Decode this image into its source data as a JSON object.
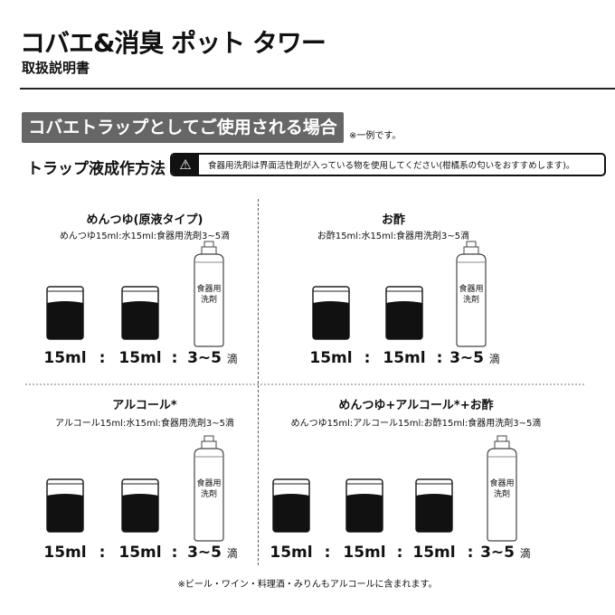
{
  "header": {
    "title": "コバエ&消臭 ポット タワー",
    "subtitle": "取扱説明書"
  },
  "section": {
    "banner": "コバエトラップとしてご使用される場合",
    "note": "※一例です。",
    "method_label": "トラップ液成作方法",
    "warning_icon": "warning-triangle-icon",
    "warning_text": "食器用洗剤は界面活性剤が入っている物を使用してください(柑橘系の匂いをおすすめします)。"
  },
  "panels": [
    {
      "title": "めんつゆ(原液タイプ)",
      "recipe": "めんつゆ15ml:水15ml:食器用洗剤3~5滴",
      "amounts": [
        "15ml",
        "15ml"
      ],
      "drops": "3~5",
      "drops_unit": "滴",
      "bottle_label": "食器用\n洗剤"
    },
    {
      "title": "お酢",
      "recipe": "お酢15ml:水15ml:食器用洗剤3~5滴",
      "amounts": [
        "15ml",
        "15ml"
      ],
      "drops": "3~5",
      "drops_unit": "滴",
      "bottle_label": "食器用\n洗剤"
    },
    {
      "title": "アルコール*",
      "recipe": "アルコール15ml:水15ml:食器用洗剤3~5滴",
      "amounts": [
        "15ml",
        "15ml"
      ],
      "drops": "3~5",
      "drops_unit": "滴",
      "bottle_label": "食器用\n洗剤"
    },
    {
      "title": "めんつゆ+アルコール*+お酢",
      "recipe": "めんつゆ15ml:アルコール15ml:お酢15ml:食器用洗剤3~5滴",
      "amounts": [
        "15ml",
        "15ml",
        "15ml"
      ],
      "drops": "3~5",
      "drops_unit": "滴",
      "bottle_label": "食器用\n洗剤"
    }
  ],
  "separator": ":",
  "footnote": "※ビール・ワイン・料理酒・みりんもアルコールに含まれます。"
}
